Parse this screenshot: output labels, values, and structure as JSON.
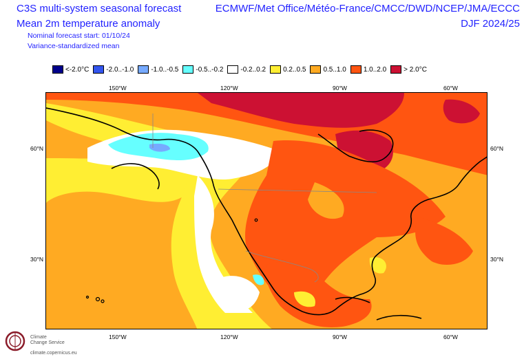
{
  "header": {
    "title_line1": "C3S multi-system seasonal forecast",
    "title_line2": "Mean 2m temperature anomaly",
    "forecast_start": "Nominal forecast start: 01/10/24",
    "method": "Variance-standardized mean",
    "systems": "ECMWF/Met Office/Météo-France/CMCC/DWD/NCEP/JMA/ECCC",
    "season": "DJF 2024/25"
  },
  "legend": [
    {
      "label": "<-2.0°C",
      "color": "#00008b"
    },
    {
      "label": "-2.0..-1.0",
      "color": "#3355ee"
    },
    {
      "label": "-1.0..-0.5",
      "color": "#77aaff"
    },
    {
      "label": "-0.5..-0.2",
      "color": "#66ffff"
    },
    {
      "label": "-0.2..0.2",
      "color": "#ffffff"
    },
    {
      "label": "0.2..0.5",
      "color": "#ffee33"
    },
    {
      "label": "0.5..1.0",
      "color": "#ffaa22"
    },
    {
      "label": "1.0..2.0",
      "color": "#ff5511"
    },
    {
      "label": "> 2.0°C",
      "color": "#cc1133"
    }
  ],
  "axes": {
    "top": [
      "150°W",
      "120°W",
      "90°W",
      "60°W"
    ],
    "bottom": [
      "150°W",
      "120°W",
      "90°W",
      "60°W"
    ],
    "left": [
      "60°N",
      "30°N"
    ],
    "right": [
      "60°N",
      "30°N"
    ]
  },
  "logo": {
    "line1": "Climate",
    "line2": "Change Service",
    "url": "climate.copernicus.eu"
  }
}
